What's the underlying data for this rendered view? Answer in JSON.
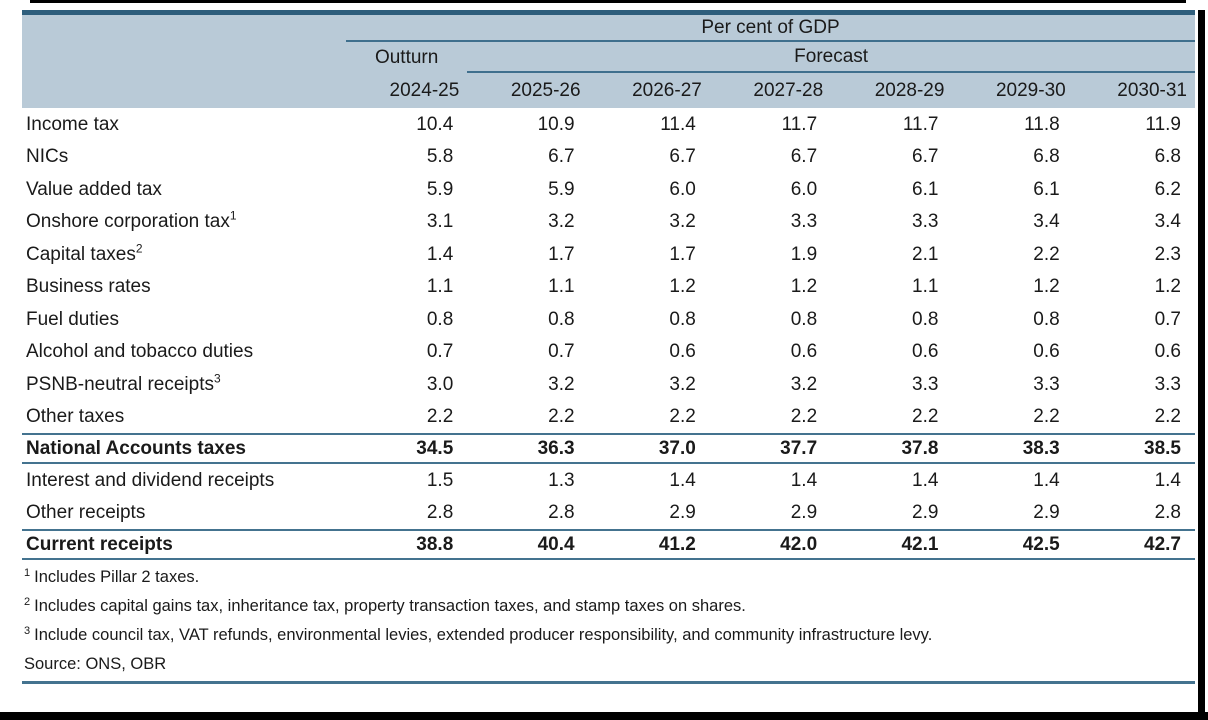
{
  "table": {
    "title": "Per cent of GDP",
    "outturn_label": "Outturn",
    "forecast_label": "Forecast",
    "years": [
      "2024-25",
      "2025-26",
      "2026-27",
      "2027-28",
      "2028-29",
      "2029-30",
      "2030-31"
    ],
    "rows": [
      {
        "label": "Income tax",
        "sup": "",
        "values": [
          "10.4",
          "10.9",
          "11.4",
          "11.7",
          "11.7",
          "11.8",
          "11.9"
        ],
        "emphasis": false,
        "rule_above": false,
        "rule_below": false
      },
      {
        "label": "NICs",
        "sup": "",
        "values": [
          "5.8",
          "6.7",
          "6.7",
          "6.7",
          "6.7",
          "6.8",
          "6.8"
        ],
        "emphasis": false,
        "rule_above": false,
        "rule_below": false
      },
      {
        "label": "Value added tax",
        "sup": "",
        "values": [
          "5.9",
          "5.9",
          "6.0",
          "6.0",
          "6.1",
          "6.1",
          "6.2"
        ],
        "emphasis": false,
        "rule_above": false,
        "rule_below": false
      },
      {
        "label": "Onshore corporation tax",
        "sup": "1",
        "values": [
          "3.1",
          "3.2",
          "3.2",
          "3.3",
          "3.3",
          "3.4",
          "3.4"
        ],
        "emphasis": false,
        "rule_above": false,
        "rule_below": false
      },
      {
        "label": "Capital taxes",
        "sup": "2",
        "values": [
          "1.4",
          "1.7",
          "1.7",
          "1.9",
          "2.1",
          "2.2",
          "2.3"
        ],
        "emphasis": false,
        "rule_above": false,
        "rule_below": false
      },
      {
        "label": "Business rates",
        "sup": "",
        "values": [
          "1.1",
          "1.1",
          "1.2",
          "1.2",
          "1.1",
          "1.2",
          "1.2"
        ],
        "emphasis": false,
        "rule_above": false,
        "rule_below": false
      },
      {
        "label": "Fuel duties",
        "sup": "",
        "values": [
          "0.8",
          "0.8",
          "0.8",
          "0.8",
          "0.8",
          "0.8",
          "0.7"
        ],
        "emphasis": false,
        "rule_above": false,
        "rule_below": false
      },
      {
        "label": "Alcohol and tobacco duties",
        "sup": "",
        "values": [
          "0.7",
          "0.7",
          "0.6",
          "0.6",
          "0.6",
          "0.6",
          "0.6"
        ],
        "emphasis": false,
        "rule_above": false,
        "rule_below": false
      },
      {
        "label": "PSNB-neutral receipts",
        "sup": "3",
        "values": [
          "3.0",
          "3.2",
          "3.2",
          "3.2",
          "3.3",
          "3.3",
          "3.3"
        ],
        "emphasis": false,
        "rule_above": false,
        "rule_below": false
      },
      {
        "label": "Other taxes",
        "sup": "",
        "values": [
          "2.2",
          "2.2",
          "2.2",
          "2.2",
          "2.2",
          "2.2",
          "2.2"
        ],
        "emphasis": false,
        "rule_above": false,
        "rule_below": false
      },
      {
        "label": "National Accounts taxes",
        "sup": "",
        "values": [
          "34.5",
          "36.3",
          "37.0",
          "37.7",
          "37.8",
          "38.3",
          "38.5"
        ],
        "emphasis": true,
        "rule_above": true,
        "rule_below": true
      },
      {
        "label": "Interest and dividend receipts",
        "sup": "",
        "values": [
          "1.5",
          "1.3",
          "1.4",
          "1.4",
          "1.4",
          "1.4",
          "1.4"
        ],
        "emphasis": false,
        "rule_above": false,
        "rule_below": false
      },
      {
        "label": "Other receipts",
        "sup": "",
        "values": [
          "2.8",
          "2.8",
          "2.9",
          "2.9",
          "2.9",
          "2.9",
          "2.8"
        ],
        "emphasis": false,
        "rule_above": false,
        "rule_below": false
      },
      {
        "label": "Current receipts",
        "sup": "",
        "values": [
          "38.8",
          "40.4",
          "41.2",
          "42.0",
          "42.1",
          "42.5",
          "42.7"
        ],
        "emphasis": true,
        "rule_above": true,
        "rule_below": true
      }
    ],
    "footnotes": [
      {
        "marker": "1",
        "text": "Includes Pillar 2 taxes."
      },
      {
        "marker": "2",
        "text": "Includes capital gains tax, inheritance tax, property transaction taxes, and stamp taxes on shares."
      },
      {
        "marker": "3",
        "text": "Include council tax, VAT refunds, environmental levies, extended producer responsibility, and community infrastructure levy."
      }
    ],
    "source": "Source: ONS, OBR"
  },
  "colors": {
    "header_bg": "#b9cad7",
    "header_top_border": "#2e5e7c",
    "header_rule": "#3f6f8d",
    "body_rule": "#44738f",
    "frame": "#000000",
    "text": "#1a1a1a"
  }
}
